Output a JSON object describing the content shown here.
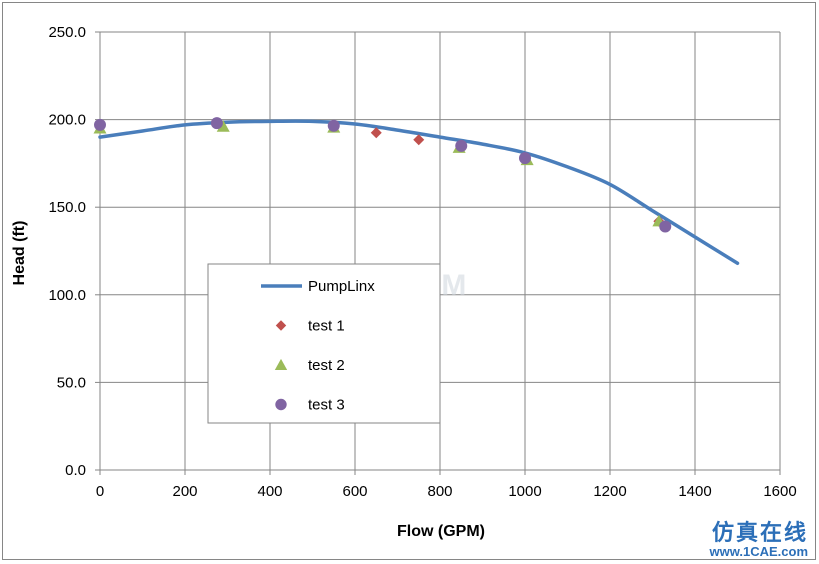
{
  "chart_data": {
    "type": "line",
    "xlabel": "Flow (GPM)",
    "ylabel": "Head (ft)",
    "xlim": [
      0,
      1600
    ],
    "ylim": [
      0,
      250
    ],
    "x_ticks": [
      0,
      200,
      400,
      600,
      800,
      1000,
      1200,
      1400,
      1600
    ],
    "y_ticks": [
      0,
      50,
      100,
      150,
      200,
      250
    ],
    "y_tick_labels": [
      "0.0",
      "50.0",
      "100.0",
      "150.0",
      "200.0",
      "250.0"
    ],
    "grid": true,
    "legend_position": "center-left",
    "series": [
      {
        "name": "PumpLinx",
        "kind": "line",
        "color": "#4a7ebb",
        "x": [
          0,
          100,
          200,
          300,
          400,
          500,
          600,
          700,
          800,
          900,
          1000,
          1100,
          1200,
          1300,
          1400,
          1500
        ],
        "y": [
          190,
          193.5,
          197,
          198.5,
          199,
          199,
          197.5,
          194,
          190,
          186,
          181,
          173,
          163,
          148,
          133,
          118
        ]
      },
      {
        "name": "test 1",
        "kind": "marker",
        "marker": "diamond",
        "color": "#c0504d",
        "x": [
          0,
          275,
          550,
          650,
          750,
          850,
          1000,
          1315
        ],
        "y": [
          196,
          198,
          196,
          192.5,
          188.5,
          185,
          178,
          142
        ]
      },
      {
        "name": "test 2",
        "kind": "marker",
        "marker": "triangle",
        "color": "#9bbb59",
        "x": [
          0,
          290,
          550,
          845,
          1005,
          1315
        ],
        "y": [
          195,
          196,
          195.5,
          184,
          177,
          142
        ]
      },
      {
        "name": "test 3",
        "kind": "marker",
        "marker": "circle",
        "color": "#8064a2",
        "x": [
          0,
          275,
          550,
          850,
          1000,
          1330
        ],
        "y": [
          197,
          198,
          196.5,
          185,
          178,
          139
        ]
      }
    ]
  },
  "watermark": {
    "center_text": "1CAE.COM",
    "logo_chars": "仿真在线",
    "url": "www.1CAE.com"
  }
}
